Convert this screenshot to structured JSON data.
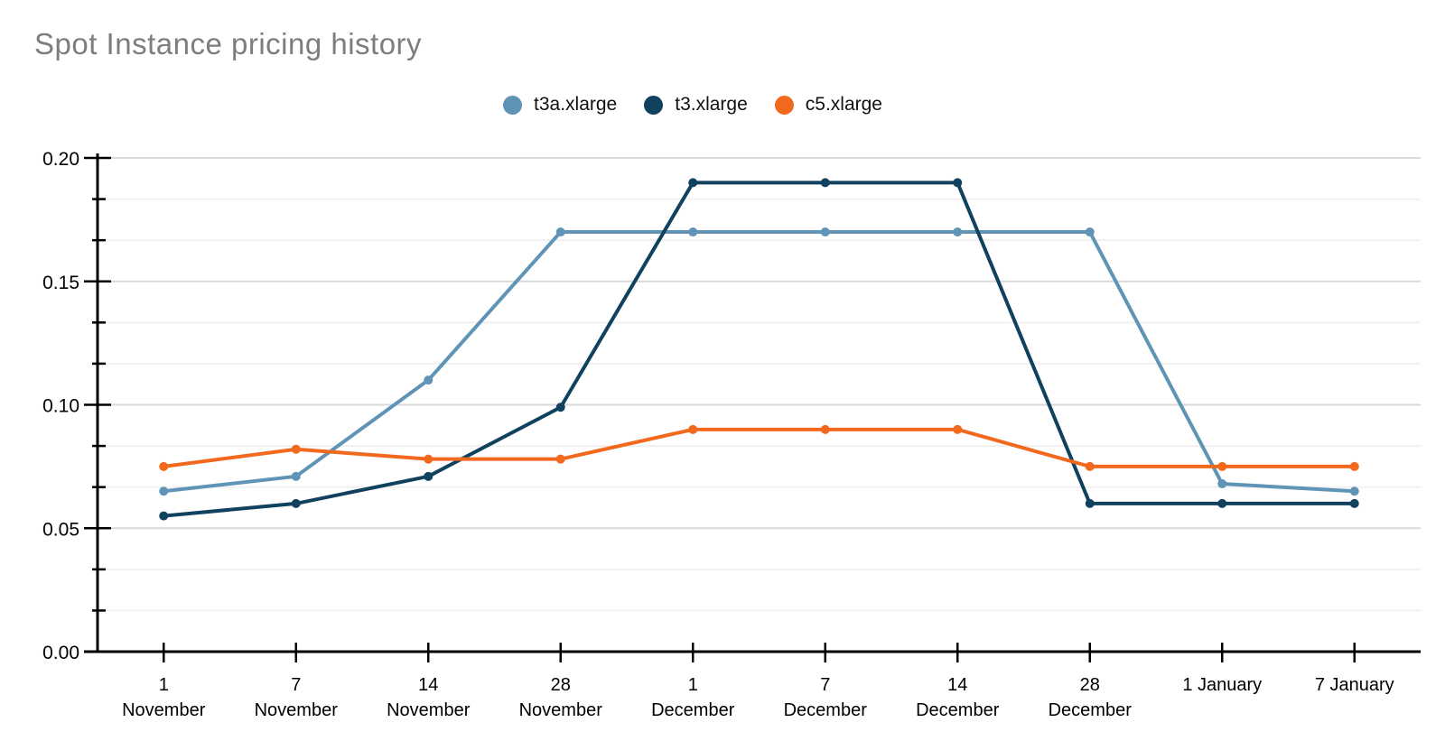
{
  "title": "Spot Instance pricing history",
  "colors": {
    "title": "#7d7d7d",
    "axis": "#000000",
    "grid_major": "#d9d9d9",
    "grid_minor": "#f0f0f0"
  },
  "chart_data": {
    "type": "line",
    "title": "Spot Instance pricing history",
    "categories": [
      "1 November",
      "7 November",
      "14 November",
      "28 November",
      "1 December",
      "7 December",
      "14 December",
      "28 December",
      "1 January",
      "7 January"
    ],
    "x_tick_lines": [
      [
        "1",
        "November"
      ],
      [
        "7",
        "November"
      ],
      [
        "14",
        "November"
      ],
      [
        "28",
        "November"
      ],
      [
        "1",
        "December"
      ],
      [
        "7",
        "December"
      ],
      [
        "14",
        "December"
      ],
      [
        "28",
        "December"
      ],
      [
        "1 January"
      ],
      [
        "7 January"
      ]
    ],
    "series": [
      {
        "name": "t3a.xlarge",
        "color": "#6094b6",
        "values": [
          0.065,
          0.071,
          0.11,
          0.17,
          0.17,
          0.17,
          0.17,
          0.17,
          0.068,
          0.065
        ]
      },
      {
        "name": "t3.xlarge",
        "color": "#10415e",
        "values": [
          0.055,
          0.06,
          0.071,
          0.099,
          0.19,
          0.19,
          0.19,
          0.06,
          0.06,
          0.06
        ]
      },
      {
        "name": "c5.xlarge",
        "color": "#f2681c",
        "values": [
          0.075,
          0.082,
          0.078,
          0.078,
          0.09,
          0.09,
          0.09,
          0.075,
          0.075,
          0.075
        ]
      }
    ],
    "xlabel": "",
    "ylabel": "",
    "ylim": [
      0,
      0.2
    ],
    "y_tick_labels": [
      "0.00",
      "0.05",
      "0.10",
      "0.15",
      "0.20"
    ],
    "y_minor_divisions": 3,
    "grid": true,
    "legend_position": "top"
  }
}
